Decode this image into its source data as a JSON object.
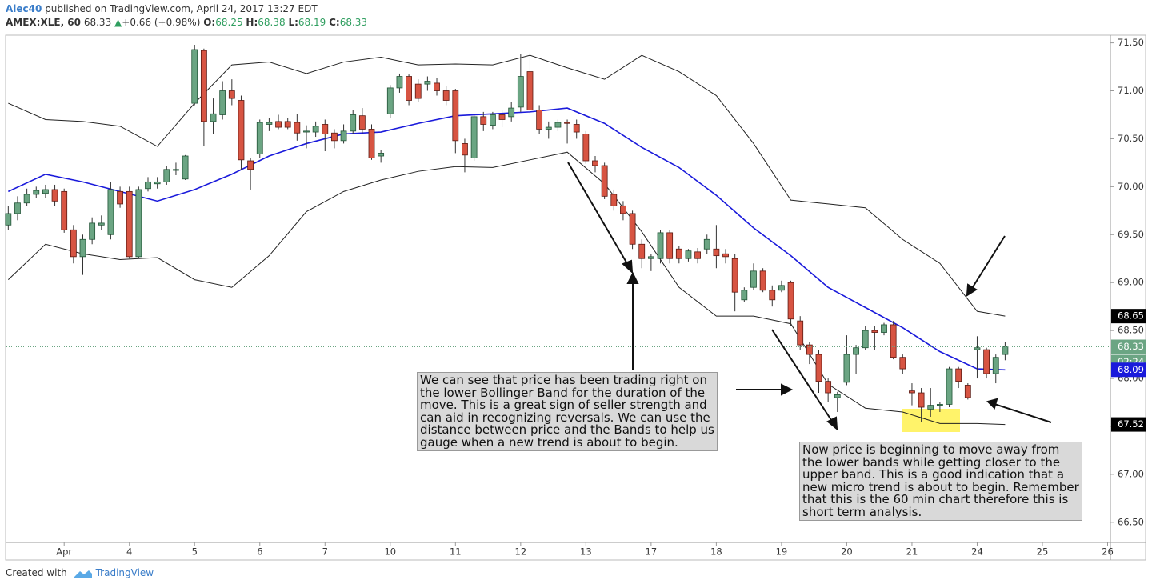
{
  "header": {
    "author": "Alec40",
    "published": "published on TradingView.com, April 24, 2017 13:27 EDT",
    "symbol": "AMEX:XLE, 60",
    "last": 68.33,
    "arrow": "▲",
    "change": "+0.66 (+0.98%)",
    "ohlc": [
      {
        "label": "O:",
        "value": 68.25
      },
      {
        "label": "H:",
        "value": 68.38
      },
      {
        "label": "L:",
        "value": 68.19
      },
      {
        "label": "C:",
        "value": 68.33
      }
    ]
  },
  "chart_data": {
    "type": "candlestick",
    "xlim": [
      -0.2,
      118.3
    ],
    "ylim": [
      66.29,
      71.58
    ],
    "xticks": [
      {
        "value": 6,
        "label": "Apr"
      },
      {
        "value": 13,
        "label": "4"
      },
      {
        "value": 20,
        "label": "5"
      },
      {
        "value": 27,
        "label": "6"
      },
      {
        "value": 34,
        "label": "7"
      },
      {
        "value": 41,
        "label": "10"
      },
      {
        "value": 48,
        "label": "11"
      },
      {
        "value": 55,
        "label": "12"
      },
      {
        "value": 62,
        "label": "13"
      },
      {
        "value": 69,
        "label": "17"
      },
      {
        "value": 76,
        "label": "18"
      },
      {
        "value": 83,
        "label": "19"
      },
      {
        "value": 90,
        "label": "20"
      },
      {
        "value": 97,
        "label": "21"
      },
      {
        "value": 104,
        "label": "24"
      },
      {
        "value": 111,
        "label": "25"
      },
      {
        "value": 118,
        "label": "26"
      }
    ],
    "yticks": [
      {
        "value": 66.5,
        "label": "66.50"
      },
      {
        "value": 67,
        "label": "67.00"
      },
      {
        "value": 67.5,
        "label": "67.50"
      },
      {
        "value": 68,
        "label": "68.00"
      },
      {
        "value": 68.5,
        "label": "68.50"
      },
      {
        "value": 69,
        "label": "69.00"
      },
      {
        "value": 69.5,
        "label": "69.50"
      },
      {
        "value": 70,
        "label": "70.00"
      },
      {
        "value": 70.5,
        "label": "70.50"
      },
      {
        "value": 71,
        "label": "71.00"
      },
      {
        "value": 71.5,
        "label": "71.50"
      }
    ],
    "up_color": "#6ba583",
    "down_color": "#d75442",
    "candles": {
      "open": [
        69.6,
        69.72,
        69.83,
        69.92,
        69.93,
        69.97,
        69.95,
        69.55,
        69.27,
        69.45,
        69.6,
        69.5,
        69.95,
        69.95,
        69.27,
        69.98,
        70.03,
        70.05,
        70.17,
        70.08,
        70.87,
        71.42,
        70.68,
        70.75,
        71.0,
        70.9,
        70.27,
        70.34,
        70.65,
        70.68,
        70.68,
        70.67,
        70.57,
        70.57,
        70.65,
        70.56,
        70.48,
        70.58,
        70.74,
        70.6,
        70.32,
        70.76,
        71.03,
        71.15,
        71.07,
        71.07,
        71.08,
        71.0,
        71.0,
        70.45,
        70.3,
        70.73,
        70.64,
        70.75,
        70.73,
        70.83,
        71.2,
        70.8,
        70.6,
        70.62,
        70.67,
        70.65,
        70.55,
        70.27,
        70.22,
        69.92,
        69.8,
        69.72,
        69.4,
        69.25,
        69.25,
        69.52,
        69.35,
        69.25,
        69.32,
        69.35,
        69.35,
        69.3,
        69.25,
        68.82,
        68.95,
        69.12,
        68.92,
        68.92,
        69.0,
        68.6,
        68.35,
        68.25,
        67.97,
        67.8,
        67.96,
        68.25,
        68.32,
        68.5,
        68.48,
        68.56,
        68.22,
        67.87,
        67.85,
        67.68,
        67.72,
        67.73,
        68.1,
        67.93,
        68.3,
        68.3,
        68.05,
        68.25
      ],
      "high": [
        69.8,
        69.9,
        69.98,
        70.0,
        70.02,
        70.02,
        69.98,
        69.6,
        69.5,
        69.68,
        69.7,
        70.05,
        70.0,
        70.0,
        70.0,
        70.1,
        70.1,
        70.22,
        70.25,
        70.33,
        71.48,
        71.44,
        70.92,
        71.1,
        71.12,
        70.95,
        70.3,
        70.7,
        70.72,
        70.75,
        70.72,
        70.76,
        70.64,
        70.68,
        70.7,
        70.6,
        70.65,
        70.8,
        70.82,
        70.65,
        70.38,
        71.06,
        71.18,
        71.17,
        71.12,
        71.15,
        71.13,
        71.05,
        71.02,
        70.5,
        70.75,
        70.78,
        70.78,
        70.8,
        70.88,
        71.38,
        71.4,
        70.85,
        70.68,
        70.7,
        70.7,
        70.7,
        70.58,
        70.32,
        70.25,
        69.97,
        69.85,
        69.75,
        69.45,
        69.3,
        69.55,
        69.55,
        69.38,
        69.35,
        69.36,
        69.5,
        69.6,
        69.35,
        69.3,
        68.95,
        69.2,
        69.15,
        68.97,
        69.02,
        69.02,
        68.65,
        68.38,
        68.3,
        68.0,
        67.86,
        68.45,
        68.35,
        68.55,
        68.55,
        68.58,
        68.6,
        68.25,
        67.95,
        67.9,
        67.9,
        67.75,
        68.12,
        68.12,
        67.95,
        68.44,
        68.32,
        68.25,
        68.38
      ],
      "low": [
        69.55,
        69.65,
        69.8,
        69.88,
        69.88,
        69.8,
        69.52,
        69.2,
        69.08,
        69.4,
        69.55,
        69.45,
        69.78,
        69.25,
        69.25,
        69.95,
        69.98,
        70.02,
        70.12,
        70.07,
        70.85,
        70.42,
        70.55,
        70.7,
        70.85,
        70.17,
        69.97,
        70.3,
        70.58,
        70.6,
        70.6,
        70.48,
        70.4,
        70.52,
        70.37,
        70.4,
        70.45,
        70.55,
        70.55,
        70.28,
        70.25,
        70.72,
        70.98,
        70.85,
        70.88,
        71.0,
        70.95,
        70.85,
        70.35,
        70.15,
        70.27,
        70.58,
        70.6,
        70.62,
        70.68,
        70.78,
        70.75,
        70.55,
        70.5,
        70.58,
        70.45,
        70.5,
        70.24,
        70.15,
        69.87,
        69.75,
        69.65,
        69.35,
        69.15,
        69.12,
        69.2,
        69.2,
        69.2,
        69.22,
        69.2,
        69.3,
        69.15,
        69.2,
        68.7,
        68.8,
        68.92,
        68.9,
        68.75,
        68.9,
        68.55,
        68.3,
        68.15,
        67.85,
        67.75,
        67.65,
        67.93,
        68.05,
        68.3,
        68.3,
        68.45,
        68.2,
        68.05,
        67.72,
        67.55,
        67.6,
        67.65,
        67.7,
        67.9,
        67.78,
        68.0,
        68.0,
        67.95,
        68.19
      ],
      "close": [
        69.72,
        69.83,
        69.92,
        69.96,
        69.97,
        69.85,
        69.55,
        69.27,
        69.45,
        69.62,
        69.62,
        69.97,
        69.82,
        69.27,
        69.97,
        70.05,
        70.05,
        70.18,
        70.18,
        70.32,
        71.43,
        70.68,
        70.76,
        71.0,
        70.92,
        70.28,
        70.18,
        70.67,
        70.67,
        70.62,
        70.62,
        70.56,
        70.58,
        70.63,
        70.55,
        70.48,
        70.58,
        70.75,
        70.6,
        70.3,
        70.35,
        71.03,
        71.15,
        70.9,
        70.92,
        71.1,
        71.0,
        70.9,
        70.48,
        70.33,
        70.73,
        70.65,
        70.75,
        70.7,
        70.82,
        71.15,
        70.8,
        70.6,
        70.62,
        70.67,
        70.66,
        70.57,
        70.27,
        70.22,
        69.9,
        69.8,
        69.72,
        69.4,
        69.25,
        69.27,
        69.52,
        69.25,
        69.25,
        69.33,
        69.25,
        69.45,
        69.28,
        69.27,
        68.9,
        68.92,
        69.12,
        68.92,
        68.82,
        68.97,
        68.62,
        68.35,
        68.25,
        67.97,
        67.85,
        67.83,
        68.25,
        68.32,
        68.5,
        68.48,
        68.56,
        68.22,
        68.1,
        67.85,
        67.7,
        67.72,
        67.73,
        68.1,
        67.97,
        67.8,
        68.32,
        68.05,
        68.22,
        68.33
      ]
    },
    "lines": [
      {
        "color": "#222222",
        "x": [
          0,
          4,
          8,
          12,
          16,
          20,
          24,
          28,
          32,
          36,
          40,
          44,
          48,
          52,
          56,
          60,
          64,
          68,
          72,
          76,
          80,
          84,
          88,
          92,
          96,
          100,
          104,
          107
        ],
        "values": [
          70.87,
          70.7,
          70.68,
          70.63,
          70.42,
          70.87,
          71.27,
          71.3,
          71.18,
          71.3,
          71.35,
          71.27,
          71.28,
          71.27,
          71.37,
          71.24,
          71.12,
          71.37,
          71.2,
          70.95,
          70.45,
          69.86,
          69.82,
          69.78,
          69.45,
          69.2,
          68.7,
          68.65
        ]
      },
      {
        "color": "#1a1adb",
        "x": [
          0,
          4,
          8,
          12,
          16,
          20,
          24,
          28,
          32,
          36,
          40,
          44,
          48,
          52,
          56,
          60,
          64,
          68,
          72,
          76,
          80,
          84,
          88,
          92,
          96,
          100,
          104,
          107
        ],
        "values": [
          69.95,
          70.13,
          70.05,
          69.95,
          69.85,
          69.97,
          70.13,
          70.32,
          70.45,
          70.55,
          70.57,
          70.66,
          70.74,
          70.76,
          70.78,
          70.82,
          70.66,
          70.41,
          70.2,
          69.91,
          69.57,
          69.28,
          68.95,
          68.74,
          68.53,
          68.28,
          68.1,
          68.09
        ]
      },
      {
        "color": "#222222",
        "x": [
          0,
          4,
          8,
          12,
          16,
          20,
          24,
          28,
          32,
          36,
          40,
          44,
          48,
          52,
          56,
          60,
          64,
          68,
          72,
          76,
          80,
          84,
          88,
          92,
          96,
          100,
          104,
          107
        ],
        "values": [
          69.03,
          69.4,
          69.3,
          69.24,
          69.26,
          69.03,
          68.95,
          69.28,
          69.74,
          69.95,
          70.07,
          70.16,
          70.21,
          70.2,
          70.28,
          70.36,
          70.03,
          69.53,
          68.95,
          68.65,
          68.65,
          68.57,
          67.94,
          67.69,
          67.65,
          67.53,
          67.53,
          67.52
        ]
      }
    ],
    "price_labels": [
      {
        "value": 68.65,
        "color": "#000000"
      },
      {
        "value": 68.33,
        "color": "#6ba583",
        "dotted": true
      },
      {
        "value": 68.09,
        "color": "#1a1adb"
      },
      {
        "value": 67.52,
        "color": "#000000"
      }
    ],
    "countdown": "02:24",
    "annotations": [
      [
        "We can see that price has been trading right on",
        "the lower Bollinger Band for the duration of the",
        "move. This is a great sign of seller strength and",
        "can aid in recognizing reversals. We can use the",
        "distance between price and the Bands to help us",
        "gauge when a new trend is about to begin."
      ],
      [
        "Now price is beginning to move away from",
        "the lower bands while getting closer to the",
        "upper band. This is a good indication that a",
        "new micro trend is about to begin. Remember",
        "that this is the 60 min chart therefore this is",
        "short term analysis."
      ]
    ]
  },
  "footer": {
    "created": "Created with",
    "brand": "TradingView"
  }
}
